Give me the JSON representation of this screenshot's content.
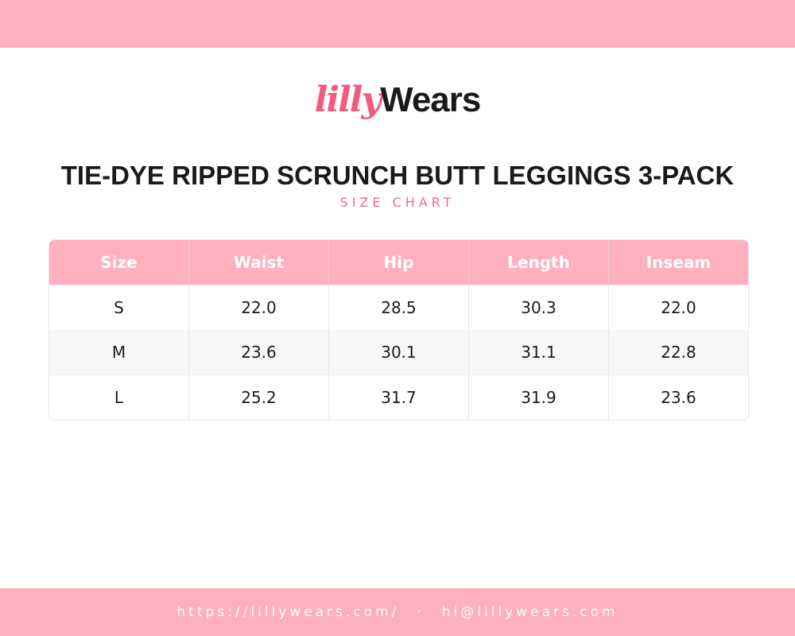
{
  "header": {
    "logo": {
      "script": "lilly",
      "word": "Wears"
    },
    "title": "TIE-DYE RIPPED SCRUNCH BUTT LEGGINGS 3-PACK",
    "subtitle": "SIZE CHART"
  },
  "table": {
    "columns": [
      "Size",
      "Waist",
      "Hip",
      "Length",
      "Inseam"
    ],
    "rows": [
      [
        "S",
        "22.0",
        "28.5",
        "30.3",
        "22.0"
      ],
      [
        "M",
        "23.6",
        "30.1",
        "31.1",
        "22.8"
      ],
      [
        "L",
        "25.2",
        "31.7",
        "31.9",
        "23.6"
      ]
    ]
  },
  "footer": {
    "website": "https://lillywears.com/",
    "separator": "·",
    "email": "hi@lillywears.com"
  }
}
